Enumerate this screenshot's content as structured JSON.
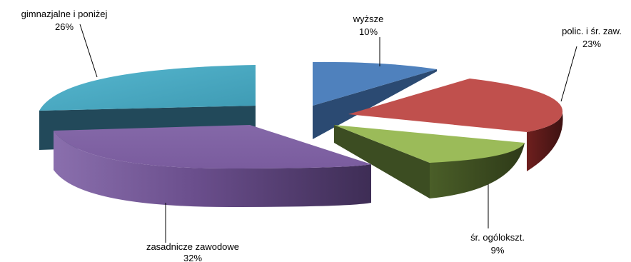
{
  "chart_data": {
    "type": "pie",
    "variant": "3d-exploded",
    "title": "",
    "slices": [
      {
        "label": "wyższe",
        "value": 10,
        "display": "10%",
        "color": "#4F81BD"
      },
      {
        "label": "polic. i śr. zaw.",
        "value": 23,
        "display": "23%",
        "color": "#C0504D"
      },
      {
        "label": "śr. ogólokszt.",
        "value": 9,
        "display": "9%",
        "color": "#9BBB59"
      },
      {
        "label": "zasadnicze zawodowe",
        "value": 32,
        "display": "32%",
        "color": "#8064A2"
      },
      {
        "label": "gimnazjalne i poniżej",
        "value": 26,
        "display": "26%",
        "color": "#4BACC6"
      }
    ],
    "legend": "none"
  }
}
